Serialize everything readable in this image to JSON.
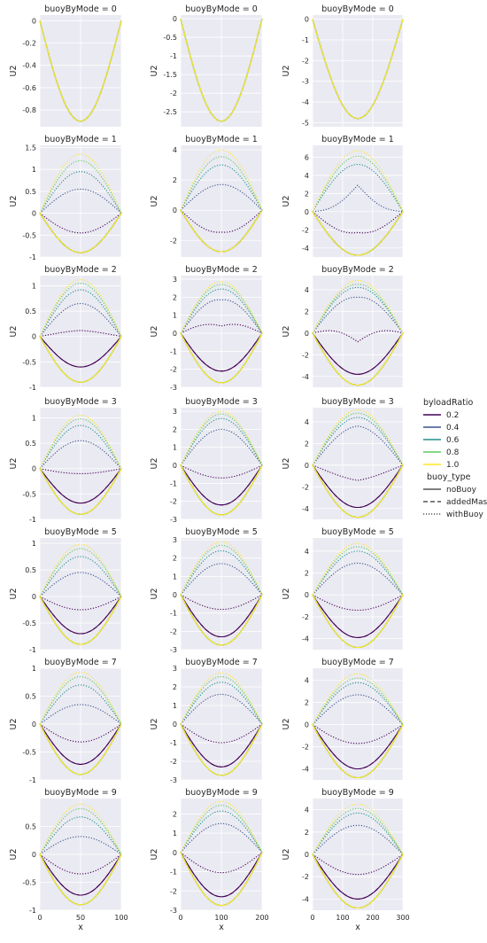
{
  "chart_data": {
    "type": "line",
    "title_prefix": "buoyByMode = ",
    "xlabel": "x",
    "ylabel": "U2",
    "rows": [
      0,
      1,
      2,
      3,
      5,
      7,
      9
    ],
    "columns": [
      {
        "xmax": 100,
        "xticks": [
          0,
          50,
          100
        ]
      },
      {
        "xmax": 200,
        "xticks": [
          0,
          100,
          200
        ]
      },
      {
        "xmax": 300,
        "xticks": [
          0,
          100,
          200,
          300
        ]
      }
    ],
    "legend": {
      "title": "byloadRatio",
      "ratios": [
        "0.2",
        "0.4",
        "0.6",
        "0.8",
        "1.0"
      ],
      "colors": [
        "#440154",
        "#3b528b",
        "#21918c",
        "#5ec962",
        "#fde725"
      ],
      "style_title": "buoy_type",
      "styles": [
        "noBuoy",
        "addedMass",
        "withBuoy"
      ]
    },
    "panels": [
      [
        {
          "mode": 0,
          "ylim": [
            -0.95,
            0.05
          ],
          "yticks": [
            0,
            -0.2,
            -0.4,
            -0.6,
            -0.8
          ],
          "dips": {
            "0.2": -0.9,
            "0.4": -0.9,
            "0.6": -0.9,
            "0.8": -0.9,
            "1.0": -0.9
          },
          "withBuoy": {}
        },
        {
          "mode": 0,
          "ylim": [
            -2.9,
            0.1
          ],
          "yticks": [
            0,
            -0.5,
            -1.0,
            -1.5,
            -2.0,
            -2.5
          ],
          "dips": {
            "0.2": -2.75,
            "0.4": -2.75,
            "0.6": -2.75,
            "0.8": -2.75,
            "1.0": -2.75
          },
          "withBuoy": {}
        },
        {
          "mode": 0,
          "ylim": [
            -5.2,
            0.2
          ],
          "yticks": [
            0,
            -1,
            -2,
            -3,
            -4,
            -5
          ],
          "dips": {
            "0.2": -4.8,
            "0.4": -4.8,
            "0.6": -4.8,
            "0.8": -4.8,
            "1.0": -4.8
          },
          "withBuoy": {}
        }
      ],
      [
        {
          "mode": 1,
          "ylim": [
            -1.0,
            1.55
          ],
          "yticks": [
            -1.0,
            -0.5,
            0.0,
            0.5,
            1.0,
            1.5
          ],
          "dips": {
            "0.2": -0.9,
            "0.4": -0.9,
            "0.6": -0.9,
            "0.8": -0.9,
            "1.0": -0.9
          },
          "withBuoy": {
            "0.2": [
              -0.45,
              -0.45,
              -0.45
            ],
            "0.4": [
              0.55,
              0.55,
              0.55
            ],
            "0.6": [
              0.95,
              0.95,
              0.95
            ],
            "0.8": [
              1.2,
              1.2,
              1.2
            ],
            "1.0": [
              1.35,
              1.35,
              1.35
            ]
          }
        },
        {
          "mode": 1,
          "ylim": [
            -3.1,
            4.3
          ],
          "yticks": [
            -2,
            0,
            2,
            4
          ],
          "dips": {
            "0.2": -2.75,
            "0.4": -2.75,
            "0.6": -2.75,
            "0.8": -2.75,
            "1.0": -2.75
          },
          "withBuoy": {
            "0.2": [
              -1.6,
              -1.45,
              -1.6
            ],
            "0.4": [
              1.7,
              1.7,
              1.7
            ],
            "0.6": [
              3.0,
              3.0,
              3.0
            ],
            "0.8": [
              3.55,
              3.55,
              3.55
            ],
            "1.0": [
              4.0,
              4.0,
              4.0
            ]
          }
        },
        {
          "mode": 1,
          "ylim": [
            -5.0,
            7.3
          ],
          "yticks": [
            -4,
            -2,
            0,
            2,
            4,
            6
          ],
          "dips": {
            "0.2": -4.8,
            "0.4": -4.8,
            "0.6": -4.8,
            "0.8": -4.8,
            "1.0": -4.8
          },
          "withBuoy": {
            "0.2": [
              -2.7,
              -2.3,
              -2.7
            ],
            "0.4": [
              0.3,
              2.9,
              0.3
            ],
            "0.6": [
              5.2,
              5.2,
              5.2
            ],
            "0.8": [
              6.1,
              6.1,
              6.1
            ],
            "1.0": [
              6.7,
              6.7,
              6.7
            ]
          }
        }
      ],
      [
        {
          "mode": 2,
          "ylim": [
            -1.0,
            1.2
          ],
          "yticks": [
            -1.0,
            -0.5,
            0.0,
            0.5,
            1.0
          ],
          "dips": {
            "0.2": -0.6,
            "0.4": -0.9,
            "0.6": -0.9,
            "0.8": -0.9,
            "1.0": -0.9
          },
          "withBuoy": {
            "0.2": [
              0.1,
              0.12,
              0.1
            ],
            "0.4": [
              0.65,
              0.65,
              0.65
            ],
            "0.6": [
              0.92,
              0.92,
              0.92
            ],
            "0.8": [
              1.05,
              1.05,
              1.05
            ],
            "1.0": [
              1.12,
              1.12,
              1.12
            ]
          }
        },
        {
          "mode": 2,
          "ylim": [
            -3.0,
            3.2
          ],
          "yticks": [
            -3,
            -2,
            -1,
            0,
            1,
            2,
            3
          ],
          "dips": {
            "0.2": -2.1,
            "0.4": -2.75,
            "0.6": -2.75,
            "0.8": -2.75,
            "1.0": -2.75
          },
          "withBuoy": {
            "0.2": [
              0.7,
              0.4,
              0.7
            ],
            "0.4": [
              2.0,
              1.85,
              2.0
            ],
            "0.6": [
              2.5,
              2.45,
              2.5
            ],
            "0.8": [
              2.75,
              2.7,
              2.75
            ],
            "1.0": [
              2.9,
              2.85,
              2.9
            ]
          }
        },
        {
          "mode": 2,
          "ylim": [
            -5.0,
            5.3
          ],
          "yticks": [
            -4,
            -2,
            0,
            2,
            4
          ],
          "dips": {
            "0.2": -3.8,
            "0.4": -4.8,
            "0.6": -4.8,
            "0.8": -4.8,
            "1.0": -4.8
          },
          "withBuoy": {
            "0.2": [
              0.6,
              -0.8,
              0.6
            ],
            "0.4": [
              3.5,
              3.3,
              3.5
            ],
            "0.6": [
              4.3,
              4.2,
              4.3
            ],
            "0.8": [
              4.6,
              4.5,
              4.6
            ],
            "1.0": [
              4.9,
              4.85,
              4.9
            ]
          }
        }
      ],
      [
        {
          "mode": 3,
          "ylim": [
            -1.0,
            1.2
          ],
          "yticks": [
            -1.0,
            -0.5,
            0.0,
            0.5,
            1.0
          ],
          "dips": {
            "0.2": -0.68,
            "0.4": -0.9,
            "0.6": -0.9,
            "0.8": -0.9,
            "1.0": -0.9
          },
          "withBuoy": {
            "0.2": [
              -0.1,
              -0.1,
              -0.1
            ],
            "0.4": [
              0.55,
              0.55,
              0.55
            ],
            "0.6": [
              0.85,
              0.85,
              0.85
            ],
            "0.8": [
              0.98,
              0.98,
              0.98
            ],
            "1.0": [
              1.05,
              1.05,
              1.05
            ]
          }
        },
        {
          "mode": 3,
          "ylim": [
            -3.0,
            3.2
          ],
          "yticks": [
            -3,
            -2,
            -1,
            0,
            1,
            2,
            3
          ],
          "dips": {
            "0.2": -2.2,
            "0.4": -2.75,
            "0.6": -2.75,
            "0.8": -2.75,
            "1.0": -2.75
          },
          "withBuoy": {
            "0.2": [
              -0.7,
              -0.7,
              -0.7
            ],
            "0.4": [
              2.0,
              2.0,
              2.0
            ],
            "0.6": [
              2.6,
              2.6,
              2.6
            ],
            "0.8": [
              2.85,
              2.85,
              2.85
            ],
            "1.0": [
              3.0,
              3.0,
              3.0
            ]
          }
        },
        {
          "mode": 3,
          "ylim": [
            -5.0,
            5.3
          ],
          "yticks": [
            -4,
            -2,
            0,
            2,
            4
          ],
          "dips": {
            "0.2": -3.9,
            "0.4": -4.8,
            "0.6": -4.8,
            "0.8": -4.8,
            "1.0": -4.8
          },
          "withBuoy": {
            "0.2": [
              -1.1,
              -1.4,
              -1.1
            ],
            "0.4": [
              3.4,
              3.6,
              3.4
            ],
            "0.6": [
              4.4,
              4.4,
              4.4
            ],
            "0.8": [
              4.8,
              4.8,
              4.8
            ],
            "1.0": [
              5.1,
              5.1,
              5.1
            ]
          }
        }
      ],
      [
        {
          "mode": 5,
          "ylim": [
            -1.0,
            1.1
          ],
          "yticks": [
            -1.0,
            -0.5,
            0.0,
            0.5,
            1.0
          ],
          "dips": {
            "0.2": -0.7,
            "0.4": -0.9,
            "0.6": -0.9,
            "0.8": -0.9,
            "1.0": -0.9
          },
          "withBuoy": {
            "0.2": [
              -0.25,
              -0.25,
              -0.25
            ],
            "0.4": [
              0.45,
              0.45,
              0.45
            ],
            "0.6": [
              0.75,
              0.75,
              0.75
            ],
            "0.8": [
              0.9,
              0.9,
              0.9
            ],
            "1.0": [
              0.98,
              0.98,
              0.98
            ]
          }
        },
        {
          "mode": 5,
          "ylim": [
            -3.0,
            3.1
          ],
          "yticks": [
            -3,
            -2,
            -1,
            0,
            1,
            2,
            3
          ],
          "dips": {
            "0.2": -2.3,
            "0.4": -2.75,
            "0.6": -2.75,
            "0.8": -2.75,
            "1.0": -2.75
          },
          "withBuoy": {
            "0.2": [
              -0.8,
              -0.8,
              -0.8
            ],
            "0.4": [
              1.7,
              1.7,
              1.7
            ],
            "0.6": [
              2.4,
              2.4,
              2.4
            ],
            "0.8": [
              2.7,
              2.7,
              2.7
            ],
            "1.0": [
              2.9,
              2.9,
              2.9
            ]
          }
        },
        {
          "mode": 5,
          "ylim": [
            -5.0,
            5.2
          ],
          "yticks": [
            -4,
            -2,
            0,
            2,
            4
          ],
          "dips": {
            "0.2": -3.9,
            "0.4": -4.8,
            "0.6": -4.8,
            "0.8": -4.8,
            "1.0": -4.8
          },
          "withBuoy": {
            "0.2": [
              -1.4,
              -1.4,
              -1.4
            ],
            "0.4": [
              2.9,
              2.9,
              2.9
            ],
            "0.6": [
              4.0,
              4.0,
              4.0
            ],
            "0.8": [
              4.4,
              4.4,
              4.4
            ],
            "1.0": [
              4.7,
              4.7,
              4.7
            ]
          }
        }
      ],
      [
        {
          "mode": 7,
          "ylim": [
            -1.0,
            1.0
          ],
          "yticks": [
            -1.0,
            -0.5,
            0.0,
            0.5,
            1.0
          ],
          "dips": {
            "0.2": -0.72,
            "0.4": -0.9,
            "0.6": -0.9,
            "0.8": -0.9,
            "1.0": -0.9
          },
          "withBuoy": {
            "0.2": [
              -0.32,
              -0.32,
              -0.32
            ],
            "0.4": [
              0.35,
              0.35,
              0.35
            ],
            "0.6": [
              0.7,
              0.7,
              0.7
            ],
            "0.8": [
              0.85,
              0.85,
              0.85
            ],
            "1.0": [
              0.93,
              0.93,
              0.93
            ]
          }
        },
        {
          "mode": 7,
          "ylim": [
            -3.0,
            3.0
          ],
          "yticks": [
            -3,
            -2,
            -1,
            0,
            1,
            2,
            3
          ],
          "dips": {
            "0.2": -2.3,
            "0.4": -2.75,
            "0.6": -2.75,
            "0.8": -2.75,
            "1.0": -2.75
          },
          "withBuoy": {
            "0.2": [
              -1.0,
              -1.0,
              -1.0
            ],
            "0.4": [
              1.6,
              1.6,
              1.6
            ],
            "0.6": [
              2.25,
              2.25,
              2.25
            ],
            "0.8": [
              2.55,
              2.55,
              2.55
            ],
            "1.0": [
              2.75,
              2.75,
              2.75
            ]
          }
        },
        {
          "mode": 7,
          "ylim": [
            -5.0,
            5.1
          ],
          "yticks": [
            -4,
            -2,
            0,
            2,
            4
          ],
          "dips": {
            "0.2": -4.0,
            "0.4": -4.8,
            "0.6": -4.8,
            "0.8": -4.8,
            "1.0": -4.8
          },
          "withBuoy": {
            "0.2": [
              -1.7,
              -1.7,
              -1.7
            ],
            "0.4": [
              2.7,
              2.7,
              2.7
            ],
            "0.6": [
              3.8,
              3.8,
              3.8
            ],
            "0.8": [
              4.2,
              4.2,
              4.2
            ],
            "1.0": [
              4.6,
              4.6,
              4.6
            ]
          }
        }
      ],
      [
        {
          "mode": 9,
          "ylim": [
            -1.0,
            1.0
          ],
          "yticks": [
            -1.0,
            -0.5,
            0.0,
            0.5
          ],
          "dips": {
            "0.2": -0.73,
            "0.4": -0.9,
            "0.6": -0.9,
            "0.8": -0.9,
            "1.0": -0.9
          },
          "withBuoy": {
            "0.2": [
              -0.35,
              -0.35,
              -0.35
            ],
            "0.4": [
              0.32,
              0.32,
              0.32
            ],
            "0.6": [
              0.67,
              0.67,
              0.67
            ],
            "0.8": [
              0.82,
              0.82,
              0.82
            ],
            "1.0": [
              0.9,
              0.9,
              0.9
            ]
          }
        },
        {
          "mode": 9,
          "ylim": [
            -3.0,
            2.8
          ],
          "yticks": [
            -3,
            -2,
            -1,
            0,
            1,
            2
          ],
          "dips": {
            "0.2": -2.3,
            "0.4": -2.75,
            "0.6": -2.75,
            "0.8": -2.75,
            "1.0": -2.75
          },
          "withBuoy": {
            "0.2": [
              -1.05,
              -1.05,
              -1.05
            ],
            "0.4": [
              1.5,
              1.5,
              1.5
            ],
            "0.6": [
              2.15,
              2.15,
              2.15
            ],
            "0.8": [
              2.45,
              2.45,
              2.45
            ],
            "1.0": [
              2.65,
              2.65,
              2.65
            ]
          }
        },
        {
          "mode": 9,
          "ylim": [
            -5.0,
            5.0
          ],
          "yticks": [
            -4,
            -2,
            0,
            2,
            4
          ],
          "dips": {
            "0.2": -4.0,
            "0.4": -4.8,
            "0.6": -4.8,
            "0.8": -4.8,
            "1.0": -4.8
          },
          "withBuoy": {
            "0.2": [
              -1.8,
              -1.8,
              -1.8
            ],
            "0.4": [
              2.6,
              2.6,
              2.6
            ],
            "0.6": [
              3.7,
              3.7,
              3.7
            ],
            "0.8": [
              4.1,
              4.1,
              4.1
            ],
            "1.0": [
              4.5,
              4.5,
              4.5
            ]
          }
        }
      ]
    ]
  }
}
